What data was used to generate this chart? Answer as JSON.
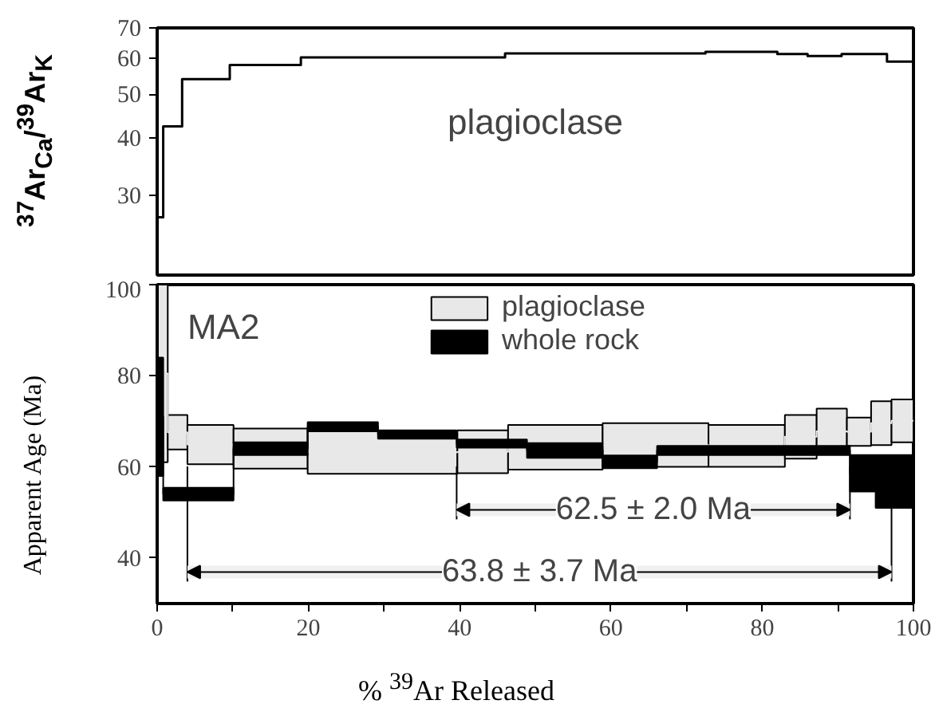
{
  "chart_data": [
    {
      "type": "step",
      "ylabel": "$^{37}$Ar$_{Ca}$/$^{39}$Ar$_{K}$",
      "log": "y",
      "xlim": [
        0,
        100
      ],
      "ylim": [
        20,
        70
      ],
      "yticks": [
        30,
        40,
        50,
        60,
        70
      ],
      "tick_labels": "y",
      "annotations": [
        "plagioclase"
      ],
      "x": [
        0,
        0.8,
        3.3,
        9.6,
        19,
        46,
        72.5,
        82,
        86,
        90.5,
        96.5,
        100
      ],
      "series": [
        {
          "color": "#000000",
          "values": [
            26.8,
            42.5,
            54,
            58,
            60.3,
            61.5,
            62,
            61.3,
            60.7,
            61.3,
            59,
            59
          ]
        }
      ]
    },
    {
      "type": "step",
      "ylabel": "Apparent  Age (Ma)",
      "xlabel": "% $^{39}$Ar  Released",
      "xlim": [
        0,
        100
      ],
      "ylim": [
        30,
        100
      ],
      "xticks": [
        0,
        {
          "value": 10,
          "label": null
        },
        20,
        {
          "value": 30,
          "label": null
        },
        40,
        {
          "value": 50,
          "label": null
        },
        60,
        {
          "value": 70,
          "label": null
        },
        80,
        {
          "value": 90,
          "label": null
        },
        100
      ],
      "yticks": [
        40,
        60,
        80,
        100
      ],
      "legend": "top",
      "annotations": [
        "MA2"
      ],
      "bands": [
        {
          "axis": "x",
          "from": 39.6,
          "to": 91.6,
          "label": "62.5 ± 2.0 Ma"
        },
        {
          "axis": "x",
          "from": 4.0,
          "to": 97.1,
          "label": "63.8 ± 3.7 Ma"
        }
      ],
      "series": [
        {
          "name": "plagioclase",
          "color": "#e8e8e8",
          "x": [
            0,
            1.4,
            4.0,
            10.1,
            19.9,
            39.7,
            46.4,
            58.9,
            72.9,
            83.0,
            87.2,
            91.2,
            94.4,
            97.1,
            100
          ],
          "values": [
            80.5,
            67.6,
            64.9,
            64.0,
            63.2,
            63.3,
            64.3,
            64.8,
            64.6,
            66.6,
            67.8,
            67.7,
            69.6,
            70.1,
            70.1
          ],
          "lower": [
            61,
            63.8,
            60.6,
            59.6,
            58.5,
            58.6,
            59.4,
            60.0,
            60.0,
            61.8,
            62.8,
            64.6,
            64.8,
            65.4,
            65.4
          ],
          "upper": [
            100,
            71.4,
            69.2,
            68.4,
            67.9,
            68.0,
            69.2,
            69.6,
            69.2,
            71.4,
            72.8,
            70.8,
            74.4,
            74.8,
            74.8
          ]
        },
        {
          "name": "whole rock",
          "color": "#000000",
          "x": [
            0,
            0.8,
            10.1,
            19.9,
            29.2,
            39.6,
            48.9,
            58.9,
            66.1,
            91.6,
            95.0,
            100
          ],
          "values": [
            71,
            54.0,
            64.0,
            68.8,
            67.1,
            65.1,
            63.6,
            61.1,
            63.6,
            58.6,
            56.8,
            56.8
          ],
          "lower": [
            58,
            52.6,
            62.6,
            67.8,
            66.2,
            64.2,
            62.0,
            59.7,
            62.6,
            54.6,
            51.0,
            51.0
          ],
          "upper": [
            84,
            55.4,
            65.4,
            69.8,
            68.0,
            66.0,
            65.2,
            62.5,
            64.6,
            62.6,
            62.6,
            62.6
          ]
        }
      ]
    }
  ]
}
